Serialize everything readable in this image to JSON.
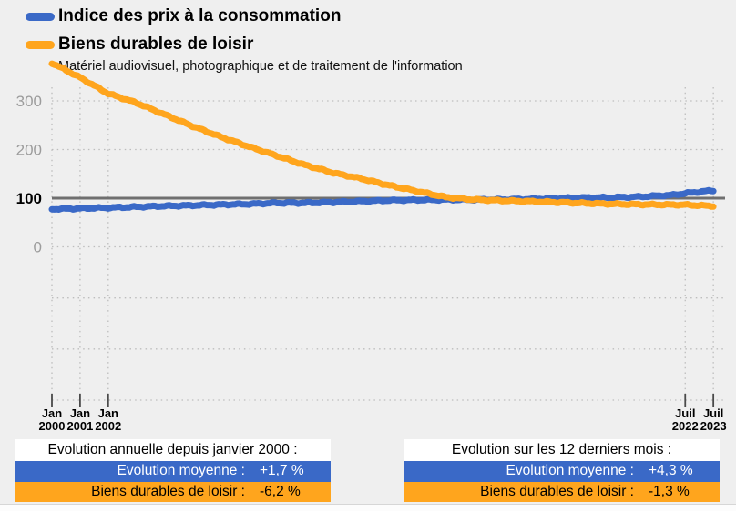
{
  "legend": {
    "series1": "Indice des prix à la consommation",
    "series2": "Biens durables de loisir",
    "subtitle": "Matériel audiovisuel, photographique et de traitement de l'information"
  },
  "colors": {
    "blue": "#3A69C7",
    "orange": "#FFA51D",
    "ref_line": "#6F6F6F",
    "grid_dots": "#BDBDBD",
    "y_label_gray": "#9C9C9C",
    "background": "#EFEFEF",
    "box_title_bg": "#FFFFFF"
  },
  "chart_data": {
    "type": "line",
    "title": "",
    "xlabel": "",
    "ylabel": "",
    "grid": "dotted",
    "legend_position": "top-left",
    "ref_line_value": 100,
    "y_ticks": [
      300,
      200,
      100,
      0
    ],
    "x_ticks": [
      {
        "month": "Jan",
        "year_label": "2000",
        "year": 2000
      },
      {
        "month": "Jan",
        "year_label": "2001",
        "year": 2001
      },
      {
        "month": "Jan",
        "year_label": "2002",
        "year": 2002
      },
      {
        "month": "Juil",
        "year_label": "2022",
        "year": 2022.5
      },
      {
        "month": "Juil",
        "year_label": "2023",
        "year": 2023.5
      }
    ],
    "x": [
      2000,
      2001,
      2002,
      2003,
      2004,
      2005,
      2006,
      2007,
      2008,
      2009,
      2010,
      2011,
      2012,
      2013,
      2014,
      2015,
      2016,
      2017,
      2018,
      2019,
      2020,
      2021,
      2022,
      2022.5,
      2023,
      2023.5
    ],
    "series": [
      {
        "name": "Indice des prix à la consommation",
        "color": "#3A69C7",
        "values": [
          77.5,
          78.9,
          80.4,
          82.1,
          83.8,
          85.2,
          86.7,
          88.0,
          90.2,
          90.3,
          91.7,
          93.6,
          95.5,
          96.3,
          96.8,
          96.9,
          97.2,
          98.2,
          99.9,
          101.0,
          101.5,
          103.2,
          106.3,
          110.0,
          113.0,
          115.8
        ]
      },
      {
        "name": "Biens durables de loisir",
        "color": "#FFA51D",
        "values": [
          378,
          348,
          315,
          296,
          272,
          248,
          226,
          206,
          187,
          168,
          152,
          140,
          126,
          114,
          102,
          97,
          95,
          93.5,
          91.5,
          89.5,
          88,
          87,
          86.5,
          86.5,
          85,
          84
        ]
      }
    ]
  },
  "info_boxes": [
    {
      "title": "Evolution annuelle depuis janvier 2000 :",
      "rows": [
        {
          "label": "Evolution moyenne :",
          "value": "+1,7 %"
        },
        {
          "label": "Biens durables de loisir :",
          "value": "-6,2 %"
        }
      ]
    },
    {
      "title": "Evolution sur les 12 derniers mois :",
      "rows": [
        {
          "label": "Evolution moyenne :",
          "value": "+4,3 %"
        },
        {
          "label": "Biens durables de loisir :",
          "value": "-1,3 %"
        }
      ]
    }
  ]
}
